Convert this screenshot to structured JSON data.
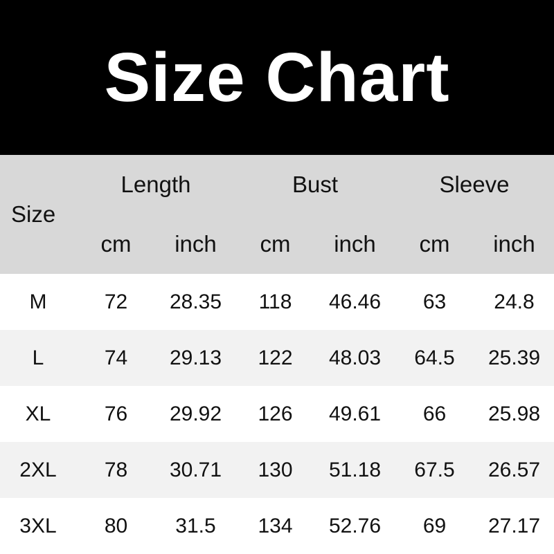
{
  "banner": {
    "title": "Size Chart",
    "bg_color": "#000000",
    "text_color": "#ffffff"
  },
  "table": {
    "size_label": "Size",
    "groups": {
      "length": "Length",
      "bust": "Bust",
      "sleeve": "Sleeve"
    },
    "units": [
      "cm",
      "inch",
      "cm",
      "inch",
      "cm",
      "inch"
    ],
    "rows": [
      {
        "size": "M",
        "values": [
          "72",
          "28.35",
          "118",
          "46.46",
          "63",
          "24.8"
        ]
      },
      {
        "size": "L",
        "values": [
          "74",
          "29.13",
          "122",
          "48.03",
          "64.5",
          "25.39"
        ]
      },
      {
        "size": "XL",
        "values": [
          "76",
          "29.92",
          "126",
          "49.61",
          "66",
          "25.98"
        ]
      },
      {
        "size": "2XL",
        "values": [
          "78",
          "30.71",
          "130",
          "51.18",
          "67.5",
          "26.57"
        ]
      },
      {
        "size": "3XL",
        "values": [
          "80",
          "31.5",
          "134",
          "52.76",
          "69",
          "27.17"
        ]
      }
    ],
    "colors": {
      "header_bg": "#d8d8d8",
      "stripe_bg": "#f2f2f2",
      "row_bg": "#ffffff",
      "text": "#111111"
    }
  },
  "chart_data": {
    "type": "table",
    "title": "Size Chart",
    "columns": [
      "Size",
      "Length cm",
      "Length inch",
      "Bust cm",
      "Bust inch",
      "Sleeve cm",
      "Sleeve inch"
    ],
    "rows": [
      [
        "M",
        72,
        28.35,
        118,
        46.46,
        63,
        24.8
      ],
      [
        "L",
        74,
        29.13,
        122,
        48.03,
        64.5,
        25.39
      ],
      [
        "XL",
        76,
        29.92,
        126,
        49.61,
        66,
        25.98
      ],
      [
        "2XL",
        78,
        30.71,
        130,
        51.18,
        67.5,
        26.57
      ],
      [
        "3XL",
        80,
        31.5,
        134,
        52.76,
        69,
        27.17
      ]
    ]
  }
}
